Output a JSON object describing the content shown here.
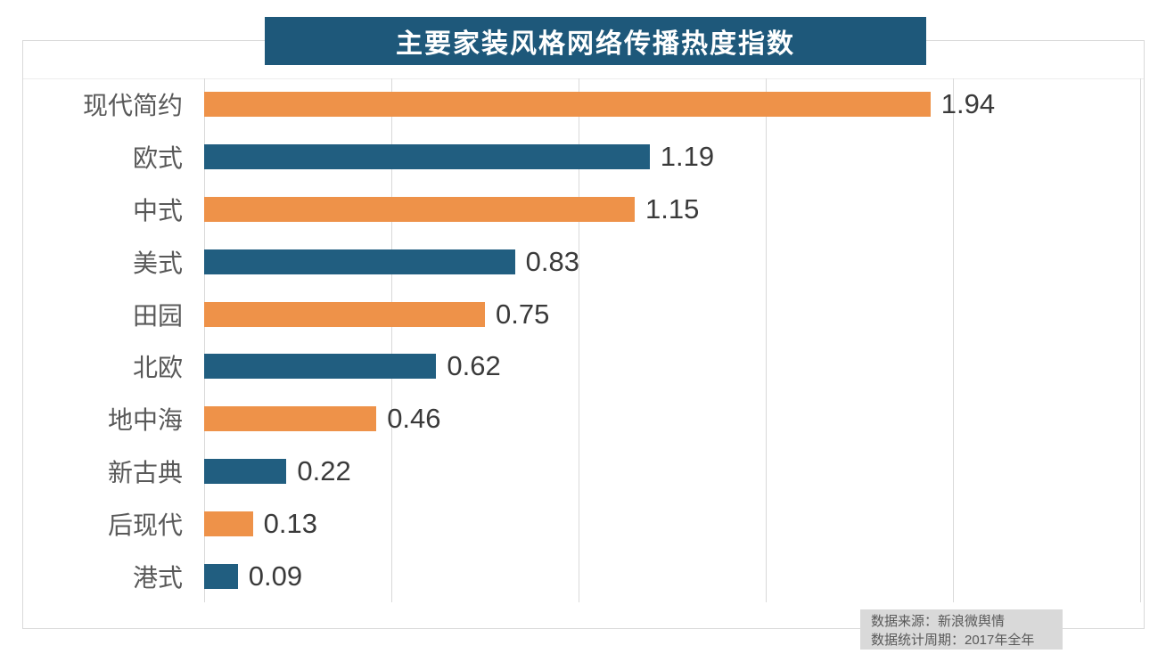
{
  "chart_data": {
    "type": "bar",
    "orientation": "horizontal",
    "title": "主要家装风格网络传播热度指数",
    "categories": [
      "现代简约",
      "欧式",
      "中式",
      "美式",
      "田园",
      "北欧",
      "地中海",
      "新古典",
      "后现代",
      "港式"
    ],
    "values": [
      1.94,
      1.19,
      1.15,
      0.83,
      0.75,
      0.62,
      0.46,
      0.22,
      0.13,
      0.09
    ],
    "value_labels": [
      "1.94",
      "1.19",
      "1.15",
      "0.83",
      "0.75",
      "0.62",
      "0.46",
      "0.22",
      "0.13",
      "0.09"
    ],
    "xlim": [
      0,
      2.5
    ],
    "gridlines": [
      0,
      0.5,
      1,
      1.5,
      2,
      2.5
    ],
    "grid": "vertical gridlines only, no axis tick labels",
    "legend": "none",
    "bar_colors": [
      "#ee9249",
      "#215e80"
    ],
    "title_background": "#1e587a",
    "title_text_color": "#ffffff",
    "category_label_color": "#595959",
    "value_label_color": "#3a3a3a",
    "gridline_color": "#d9d9d9"
  },
  "source_note": {
    "line1": "数据来源：新浪微舆情",
    "line2": "数据统计周期：2017年全年",
    "background": "#d9d9d9"
  }
}
